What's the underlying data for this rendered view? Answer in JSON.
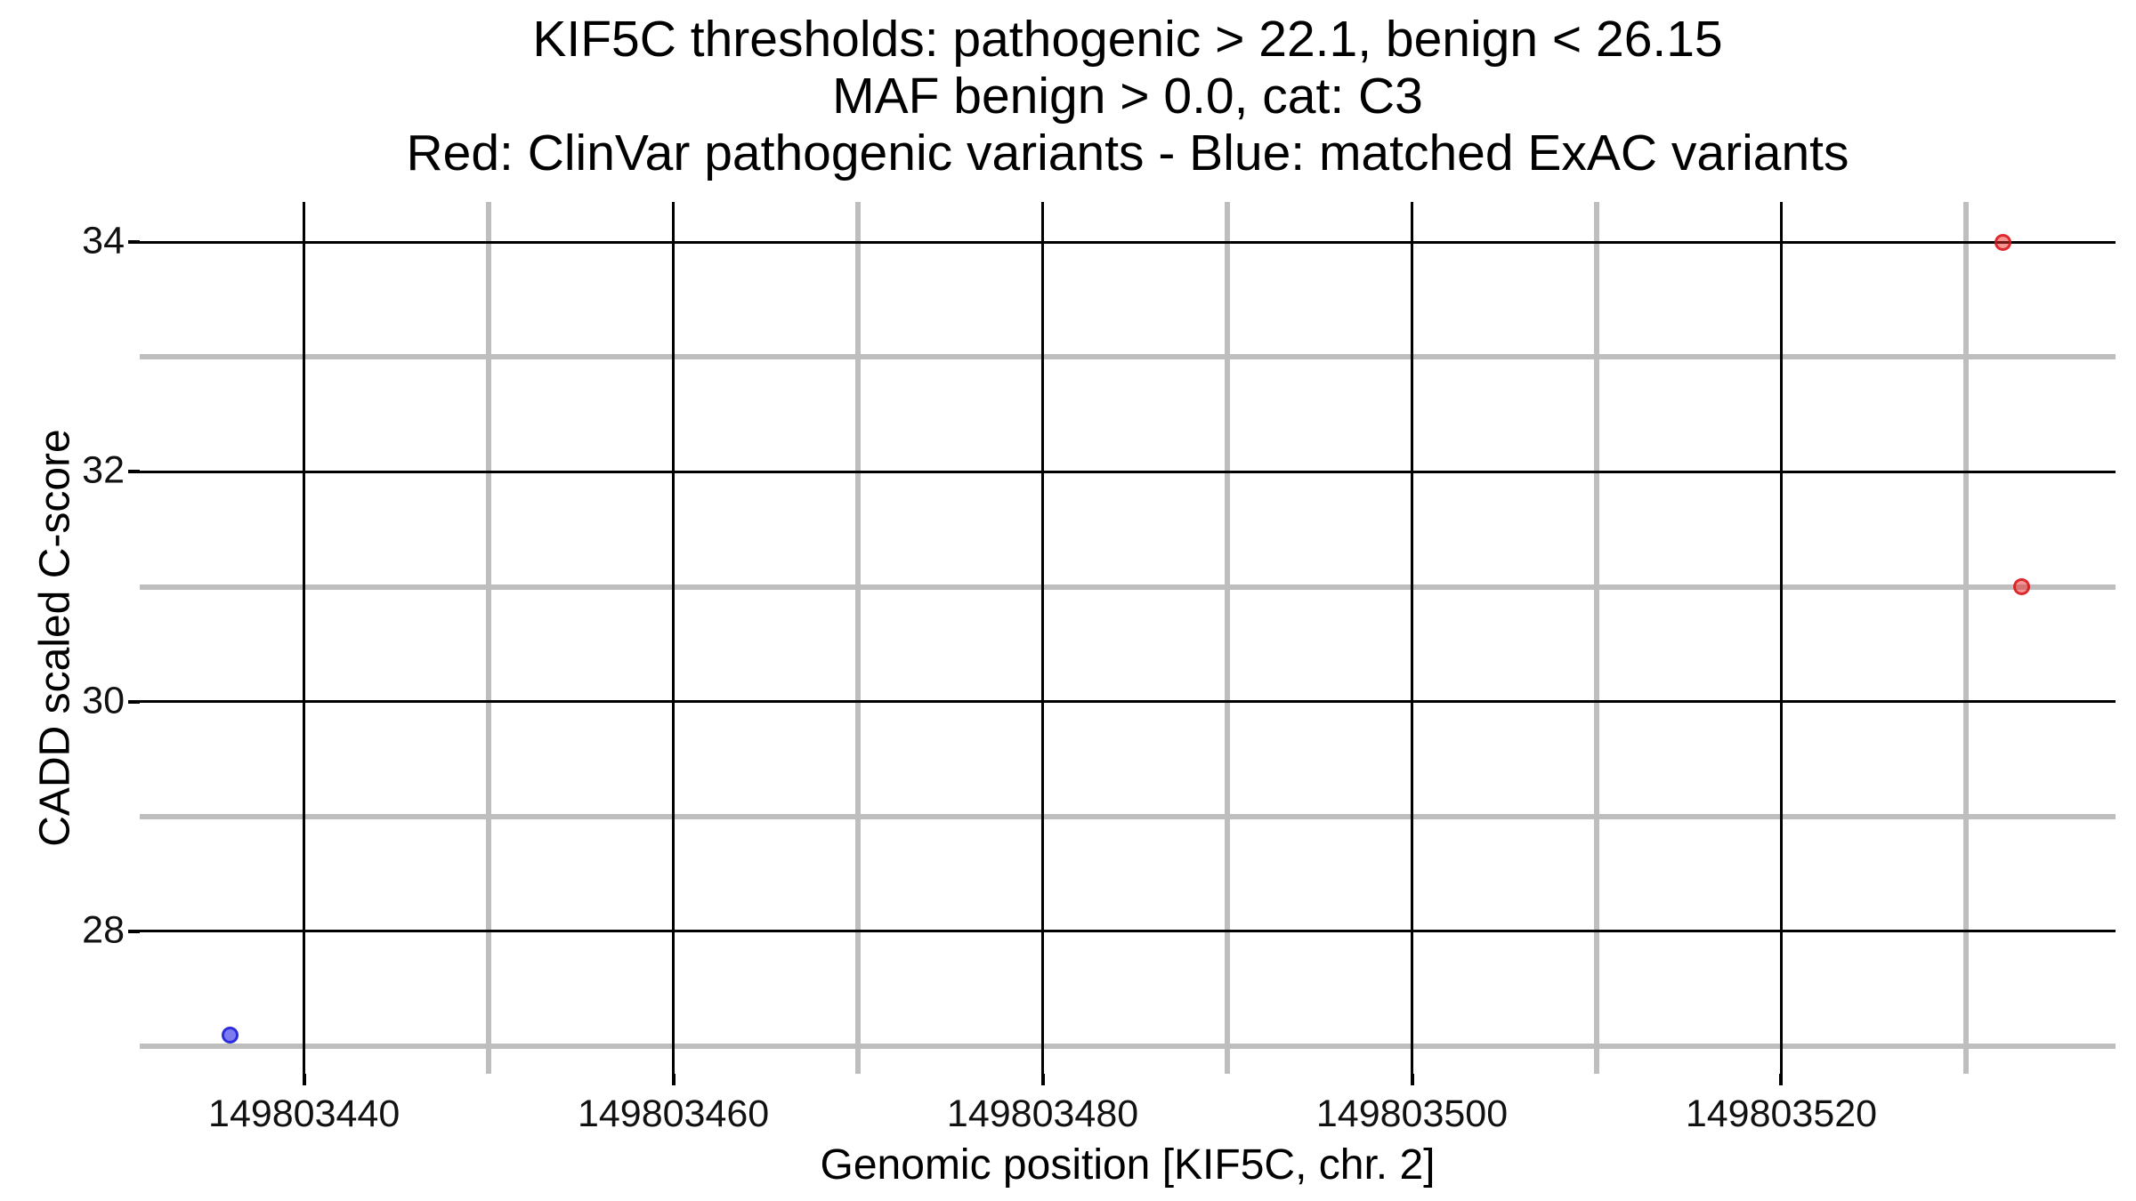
{
  "figure": {
    "background": "#FFFFFF"
  },
  "chart_data": {
    "type": "scatter",
    "title_lines": [
      "KIF5C thresholds: pathogenic > 22.1, benign < 26.15",
      "MAF benign > 0.0, cat: C3",
      "Red: ClinVar pathogenic variants - Blue: matched ExAC variants"
    ],
    "xlabel": "Genomic position [KIF5C, chr. 2]",
    "ylabel": "CADD scaled C-score",
    "x_ticks": [
      149803440,
      149803460,
      149803480,
      149803500,
      149803520
    ],
    "x_minor_gridlines": [
      149803450,
      149803470,
      149803490,
      149803510,
      149803530
    ],
    "y_ticks": [
      28,
      30,
      32,
      34
    ],
    "y_minor_gridlines": [
      27,
      29,
      31,
      33
    ],
    "xlim": [
      149803431.1,
      149803538.1
    ],
    "ylim": [
      26.76,
      34.35
    ],
    "grid": {
      "major_color": "#000000",
      "minor_color": "#BEBEBE",
      "grid_on": true
    },
    "legend_position": "none",
    "series": [
      {
        "name": "ClinVar pathogenic variants",
        "color": "red",
        "fill": "rgba(237,45,42,0.5)",
        "stroke": "rgba(215,15,20,0.8)",
        "points": [
          {
            "x": 149803532,
            "y": 34.0
          },
          {
            "x": 149803533,
            "y": 31.0
          }
        ]
      },
      {
        "name": "matched ExAC variants",
        "color": "blue",
        "fill": "rgba(30,30,230,0.58)",
        "stroke": "rgba(25,25,215,0.8)",
        "points": [
          {
            "x": 149803436,
            "y": 27.1
          }
        ]
      }
    ]
  }
}
